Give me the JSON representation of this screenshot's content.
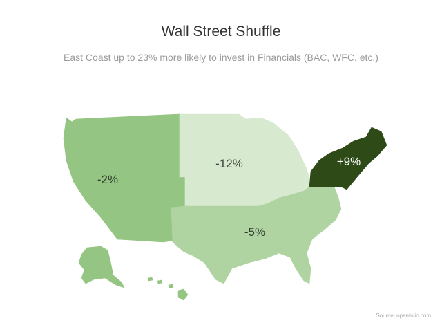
{
  "title": "Wall Street Shuffle",
  "subtitle": "East Coast up to 23% more likely to invest in Financials (BAC, WFC, etc.)",
  "source": "Source: openfolio.com",
  "regions": [
    {
      "id": "west",
      "label": "-2%",
      "value": -2,
      "color": "#94c582",
      "label_color": "#2f3b2f"
    },
    {
      "id": "midwest",
      "label": "-12%",
      "value": -12,
      "color": "#d7eacf",
      "label_color": "#3d473d"
    },
    {
      "id": "south",
      "label": "-5%",
      "value": -5,
      "color": "#b0d4a1",
      "label_color": "#2f3b2f"
    },
    {
      "id": "northeast",
      "label": "+9%",
      "value": 9,
      "color": "#2d4a17",
      "label_color": "#ffffff"
    }
  ]
}
